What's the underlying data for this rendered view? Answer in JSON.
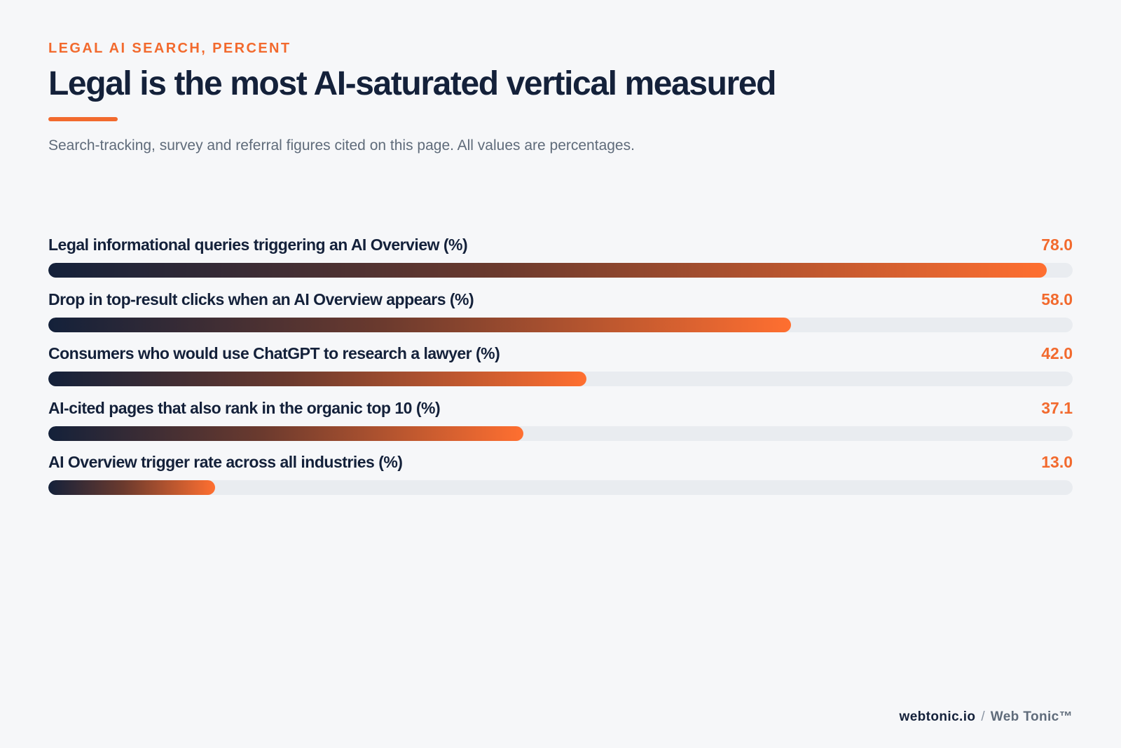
{
  "header": {
    "eyebrow": "LEGAL AI SEARCH, PERCENT",
    "title": "Legal is the most AI-saturated vertical measured",
    "subtitle": "Search-tracking, survey and referral figures cited on this page. All values are percentages."
  },
  "colors": {
    "accent": "#f26a2e",
    "navy": "#14213a",
    "track": "#e9ecf0",
    "background": "#f6f7f9"
  },
  "chart_data": {
    "type": "bar",
    "orientation": "horizontal",
    "xlim": [
      0,
      80
    ],
    "grid": false,
    "categories": [
      "Legal informational queries triggering an AI Overview (%)",
      "Drop in top-result clicks when an AI Overview appears (%)",
      "Consumers who would use ChatGPT to research a lawyer (%)",
      "AI-cited pages that also rank in the organic top 10 (%)",
      "AI Overview trigger rate across all industries (%)"
    ],
    "values": [
      78.0,
      58.0,
      42.0,
      37.1,
      13.0
    ],
    "value_labels": [
      "78.0",
      "58.0",
      "42.0",
      "37.1",
      "13.0"
    ]
  },
  "footer": {
    "domain": "webtonic.io",
    "separator": "/",
    "brand": "Web Tonic™"
  }
}
